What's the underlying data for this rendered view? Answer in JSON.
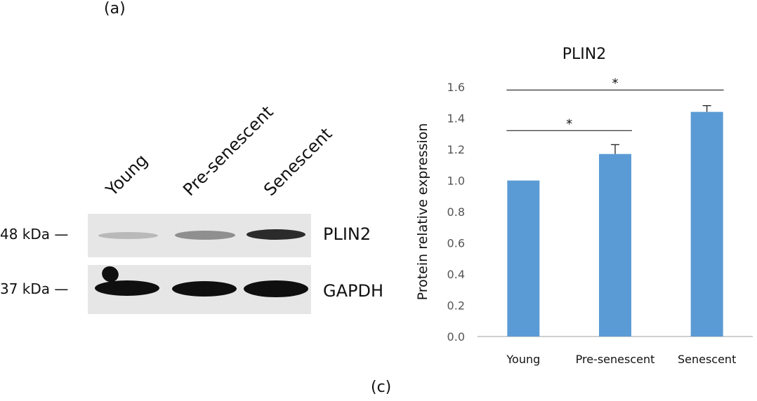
{
  "panel_labels": {
    "a": "(a)",
    "c": "(c)"
  },
  "western_blot": {
    "lanes": [
      "Young",
      "Pre-senescent",
      "Senescent"
    ],
    "markers": [
      {
        "size": "48 kDa —",
        "protein": "PLIN2"
      },
      {
        "size": "37 kDa —",
        "protein": "GAPDH"
      }
    ]
  },
  "chart_data": {
    "type": "bar",
    "title": "PLIN2",
    "ylabel": "Protein relative expression",
    "xlabel": "",
    "categories": [
      "Young",
      "Pre-senescent",
      "Senescent"
    ],
    "values": [
      1.0,
      1.17,
      1.44
    ],
    "errors": [
      0.0,
      0.06,
      0.04
    ],
    "ylim": [
      0,
      1.6
    ],
    "yticks": [
      "0.0",
      "0.2",
      "0.4",
      "0.6",
      "0.8",
      "1.0",
      "1.2",
      "1.4",
      "1.6"
    ],
    "grid": false,
    "bar_color": "#5b9bd5",
    "significance": [
      {
        "from": "Young",
        "to": "Pre-senescent",
        "label": "*"
      },
      {
        "from": "Young",
        "to": "Senescent",
        "label": "*"
      }
    ]
  }
}
